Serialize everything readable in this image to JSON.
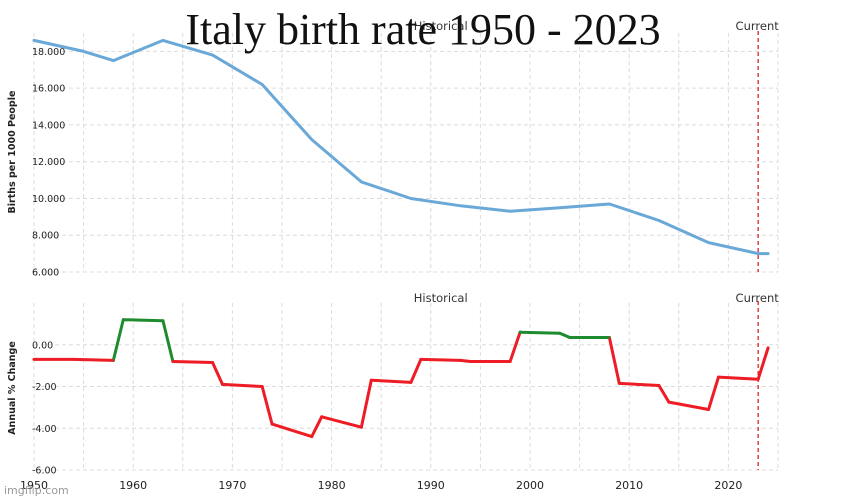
{
  "title": "Italy birth rate 1950 - 2023",
  "watermark": "imgflip.com",
  "colors": {
    "line": "#6aa8d8",
    "positive": "#1e8c2e",
    "negative": "#ee1c24",
    "current_marker": "#e02020",
    "grid": "#dcdcdc"
  },
  "chart_data": [
    {
      "type": "line",
      "panel_labels": {
        "historical": "Historical",
        "current": "Current"
      },
      "ylabel": "Births per 1000 People",
      "xlim": [
        1950,
        2025
      ],
      "ylim": [
        6,
        19
      ],
      "y_ticks": [
        "6.000",
        "8.000",
        "10.000",
        "12.000",
        "14.000",
        "16.000",
        "18.000"
      ],
      "x": [
        1950,
        1955,
        1958,
        1963,
        1968,
        1973,
        1978,
        1983,
        1988,
        1993,
        1998,
        2003,
        2008,
        2013,
        2018,
        2023,
        2024
      ],
      "values": [
        18.6,
        18.0,
        17.5,
        18.6,
        17.8,
        16.2,
        13.2,
        10.9,
        10.0,
        9.6,
        9.3,
        9.5,
        9.7,
        8.8,
        7.6,
        7.0,
        7.0
      ],
      "current_year": 2023
    },
    {
      "type": "line",
      "panel_labels": {
        "historical": "Historical",
        "current": "Current"
      },
      "ylabel": "Annual % Change",
      "xlabel": "",
      "xlim": [
        1950,
        2025
      ],
      "ylim": [
        -6,
        2
      ],
      "y_ticks": [
        "0.00",
        "-2.00",
        "-4.00",
        "-6.00"
      ],
      "x_ticks": [
        "1950",
        "1960",
        "1970",
        "1980",
        "1990",
        "2000",
        "2010",
        "2020"
      ],
      "x": [
        1950,
        1954,
        1958,
        1959,
        1963,
        1964,
        1968,
        1969,
        1973,
        1974,
        1978,
        1979,
        1983,
        1984,
        1988,
        1989,
        1993,
        1994,
        1998,
        1999,
        2003,
        2004,
        2008,
        2009,
        2013,
        2014,
        2018,
        2019,
        2023,
        2024
      ],
      "values": [
        -0.7,
        -0.7,
        -0.75,
        1.2,
        1.15,
        -0.8,
        -0.85,
        -1.9,
        -2.0,
        -3.8,
        -4.4,
        -3.45,
        -3.95,
        -1.7,
        -1.8,
        -0.7,
        -0.75,
        -0.8,
        -0.8,
        0.6,
        0.55,
        0.35,
        0.35,
        -1.85,
        -1.95,
        -2.75,
        -3.1,
        -1.55,
        -1.65,
        -0.15
      ],
      "current_year": 2023
    }
  ]
}
